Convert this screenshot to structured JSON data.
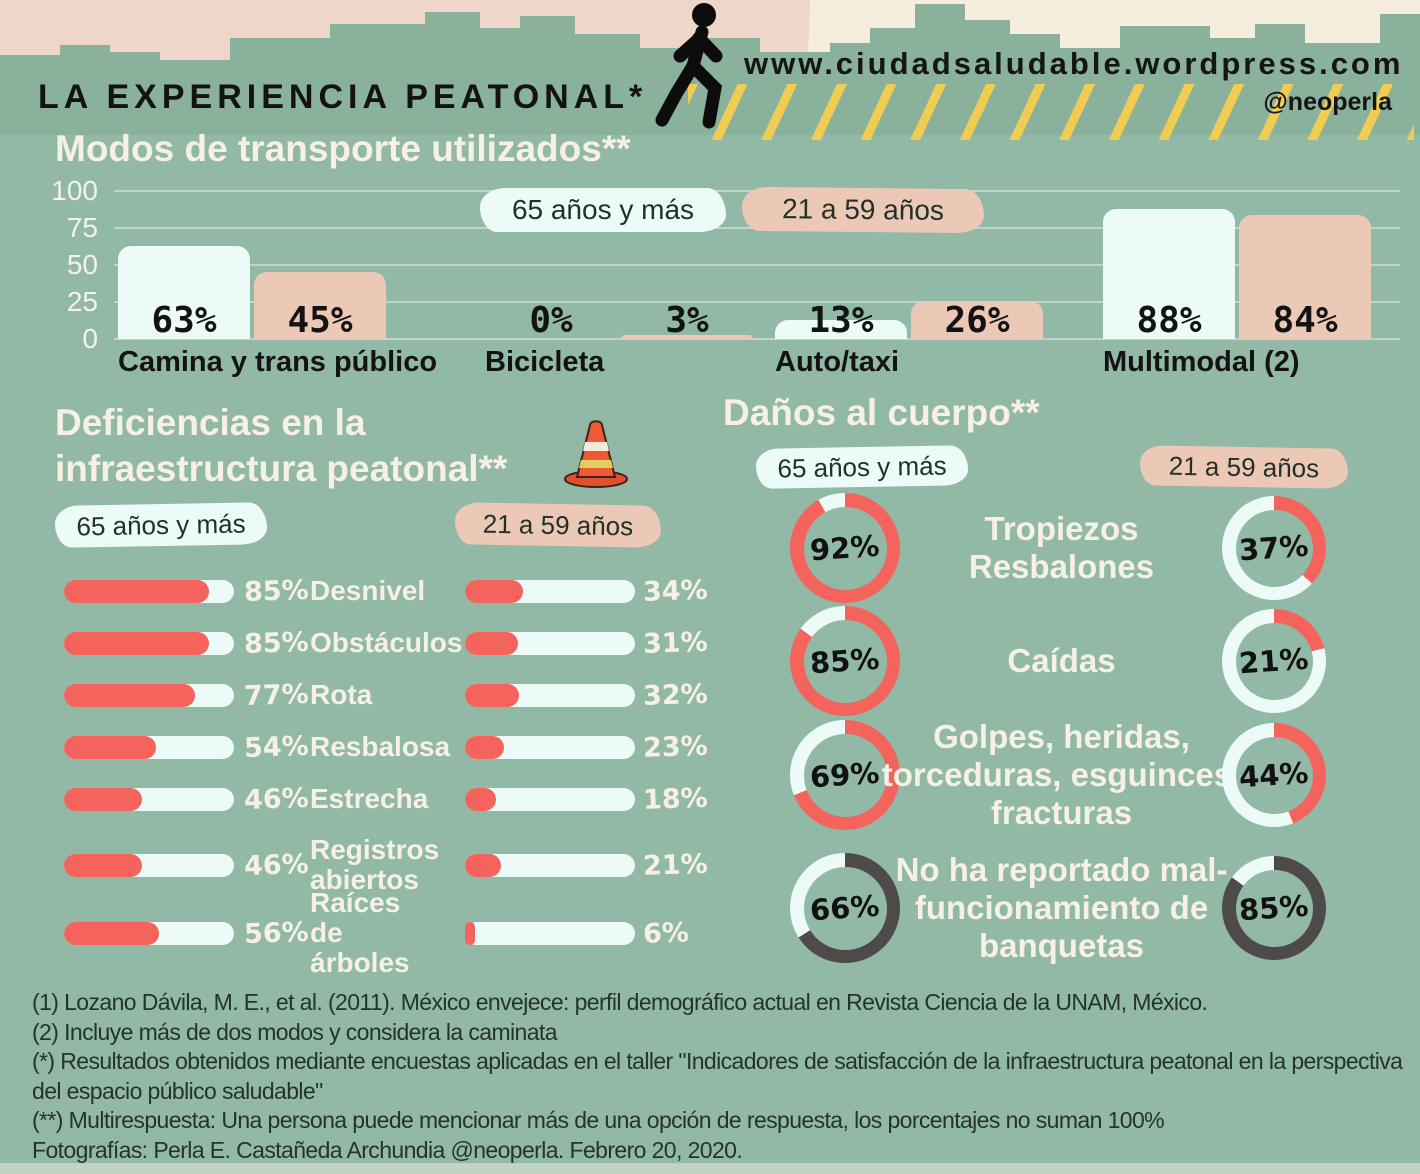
{
  "page": {
    "title": "LA EXPERIENCIA PEATONAL*",
    "website": "www.ciudadsaludable.wordpress.com",
    "handle": "@neoperla"
  },
  "sections": {
    "deficiencias": {
      "title_lines": [
        "Deficiencias en la",
        "infraestructura peatonal**"
      ]
    }
  },
  "colors": {
    "background": "#92b9a5",
    "skyline": "#8ab19c",
    "sky_pink": "#eed6c9",
    "sky_cream": "#f5eedd",
    "pale": "#ecfbf8",
    "tan": "#ecc9b6",
    "coral": "#f4635c",
    "dark": "#4e4a49",
    "yellow": "#f0cd52",
    "cream_text": "#f6f1e4",
    "ink": "#131313"
  },
  "chart_data": [
    {
      "type": "bar",
      "title": "Modos de transporte utilizados**",
      "categories": [
        "Camina y trans público",
        "Bicicleta",
        "Auto/taxi",
        "Multimodal (2)"
      ],
      "series": [
        {
          "name": "65 años y más",
          "values": [
            63,
            0,
            13,
            88
          ]
        },
        {
          "name": "21 a 59 años",
          "values": [
            45,
            3,
            26,
            84
          ]
        }
      ],
      "ylim": [
        0,
        100
      ],
      "y_ticks": [
        100,
        75,
        50,
        25,
        0
      ],
      "grid": true,
      "unit": "%",
      "legend_position": "top"
    },
    {
      "type": "bar",
      "orientation": "horizontal",
      "title": "Deficiencias en la infraestructura peatonal**",
      "categories": [
        "Desnivel",
        "Obstáculos",
        "Rota",
        "Resbalosa",
        "Estrecha",
        "Registros abiertos",
        "Raíces de árboles"
      ],
      "categories_display": [
        "Desnivel",
        "Obstáculos",
        "Rota",
        "Resbalosa",
        "Estrecha",
        "Registros\nabiertos",
        "Raíces de\nárboles"
      ],
      "series": [
        {
          "name": "65 años y más",
          "values": [
            85,
            85,
            77,
            54,
            46,
            46,
            56
          ]
        },
        {
          "name": "21 a 59 años",
          "values": [
            34,
            31,
            32,
            23,
            18,
            21,
            6
          ]
        }
      ],
      "xlim": [
        0,
        100
      ],
      "unit": "%",
      "legend_position": "top"
    },
    {
      "type": "pie",
      "variant": "donut-rings",
      "title": "Daños al cuerpo**",
      "categories": [
        "Tropiezos Resbalones",
        "Caídas",
        "Golpes, heridas, torceduras, esguinces, fracturas",
        "No ha reportado mal-funcionamiento de banquetas"
      ],
      "categories_display": [
        "Tropiezos\nResbalones",
        "Caídas",
        "Golpes, heridas,\ntorceduras, esguinces,\nfracturas",
        "No ha reportado mal-\nfuncionamiento de\nbanquetas"
      ],
      "series": [
        {
          "name": "65 años y más",
          "values": [
            92,
            85,
            69,
            66
          ]
        },
        {
          "name": "21 a 59 años",
          "values": [
            37,
            21,
            44,
            85
          ]
        }
      ],
      "ring_colors": [
        "#f4635c",
        "#f4635c",
        "#f4635c",
        "#4e4a49"
      ],
      "unit": "%",
      "legend_position": "top"
    }
  ],
  "footnotes": [
    "(1) Lozano Dávila, M. E., et al. (2011). México envejece: perfil demográfico actual en Revista Ciencia de la UNAM, México.",
    "(2) Incluye más de dos modos y considera la caminata",
    "(*) Resultados obtenidos mediante encuestas aplicadas en el taller \"Indicadores de satisfacción de la infraestructura peatonal en la perspectiva del espacio público saludable\"",
    "(**) Multirespuesta: Una persona puede mencionar más de una opción de respuesta, los porcentajes no suman 100%",
    "Fotografías: Perla E. Castañeda Archundia @neoperla. Febrero 20, 2020."
  ]
}
